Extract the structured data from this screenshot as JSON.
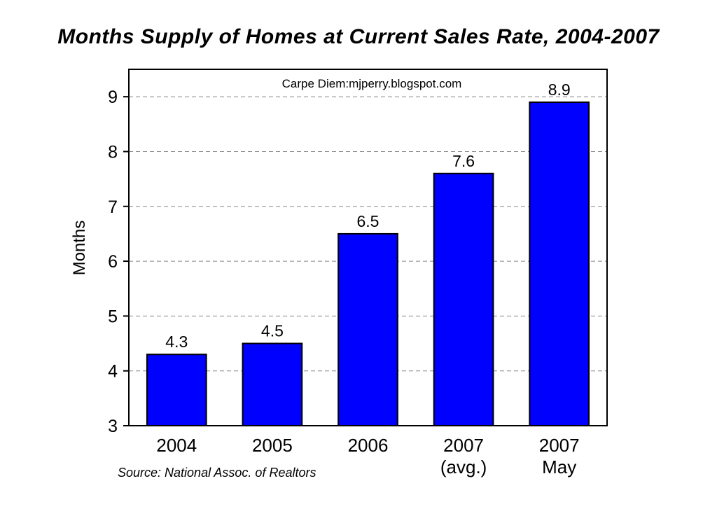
{
  "title": "Months Supply of Homes at Current Sales Rate, 2004-2007",
  "source": "Source: National Assoc. of Realtors",
  "chart_data": {
    "type": "bar",
    "title": "Months Supply of Homes at Current Sales Rate, 2004-2007",
    "ylabel": "Months",
    "xlabel": "",
    "annotation": "Carpe Diem:mjperry.blogspot.com",
    "categories": [
      [
        "2004"
      ],
      [
        "2005"
      ],
      [
        "2006"
      ],
      [
        "2007",
        "(avg.)"
      ],
      [
        "2007",
        "May"
      ]
    ],
    "values": [
      4.3,
      4.5,
      6.5,
      7.6,
      8.9
    ],
    "data_labels": [
      "4.3",
      "4.5",
      "6.5",
      "7.6",
      "8.9"
    ],
    "yticks": [
      3,
      4,
      5,
      6,
      7,
      8,
      9
    ],
    "ylim": [
      3,
      9.5
    ],
    "grid": true,
    "bar_color": "#0000FF",
    "legend": "none"
  }
}
